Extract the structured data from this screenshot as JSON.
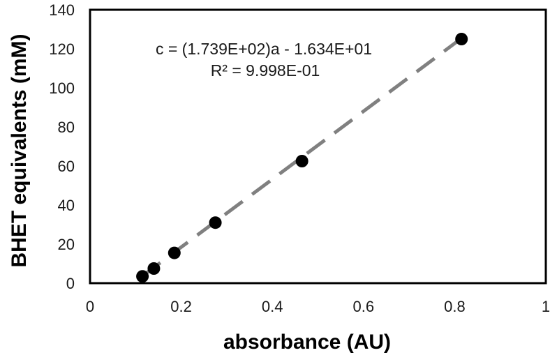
{
  "chart_data": {
    "type": "scatter",
    "xlabel": "absorbance (AU)",
    "ylabel": "BHET equivalents (mM)",
    "xlim": [
      0,
      1
    ],
    "ylim": [
      0,
      140
    ],
    "x_ticks": [
      "0",
      "0.2",
      "0.4",
      "0.6",
      "0.8",
      "1"
    ],
    "y_ticks": [
      "0",
      "20",
      "40",
      "60",
      "80",
      "100",
      "120",
      "140"
    ],
    "grid": false,
    "legend": "none",
    "series": [
      {
        "x": [
          0.115,
          0.14,
          0.185,
          0.275,
          0.465,
          0.815
        ],
        "y": [
          3.5,
          7.5,
          15.5,
          31,
          62.5,
          125
        ],
        "color": "#000000"
      }
    ],
    "trendline": {
      "style": "dashed",
      "color": "#808080",
      "slope": 173.9,
      "intercept": -16.34,
      "x_range": [
        0.115,
        0.815
      ]
    },
    "annotations": [
      "c = (1.739E+02)a - 1.634E+01",
      "R² = 9.998E-01"
    ]
  }
}
